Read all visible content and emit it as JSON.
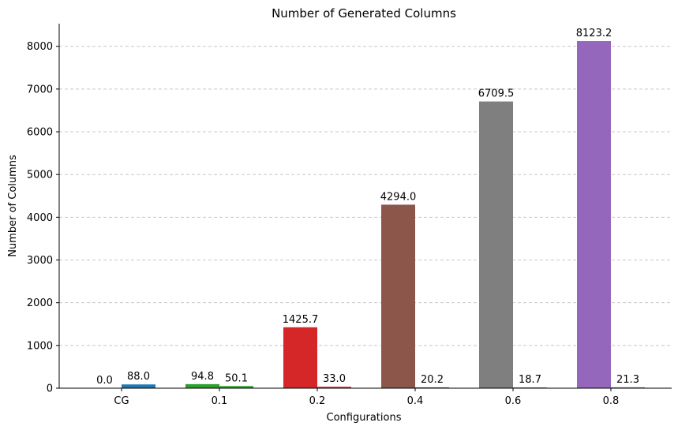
{
  "chart_data": {
    "type": "bar",
    "title": "Number of Generated Columns",
    "xlabel": "Configurations",
    "ylabel": "Number of Columns",
    "categories": [
      "CG",
      "0.1",
      "0.2",
      "0.4",
      "0.6",
      "0.8"
    ],
    "ylim": [
      0,
      8530
    ],
    "yticks": [
      0,
      1000,
      2000,
      3000,
      4000,
      5000,
      6000,
      7000,
      8000
    ],
    "grid": {
      "y": true,
      "style": "dashed",
      "color": "#c8c8c8"
    },
    "series": [
      {
        "values": [
          0.0,
          94.8,
          1425.7,
          4294.0,
          6709.5,
          8123.2
        ],
        "labels": [
          "0.0",
          "94.8",
          "1425.7",
          "4294.0",
          "6709.5",
          "8123.2"
        ],
        "colors": [
          "#1f77b4",
          "#2ca02c",
          "#d62728",
          "#8c564b",
          "#7f7f7f",
          "#9467bd"
        ]
      },
      {
        "values": [
          88.0,
          50.1,
          33.0,
          20.2,
          18.7,
          21.3
        ],
        "labels": [
          "88.0",
          "50.1",
          "33.0",
          "20.2",
          "18.7",
          "21.3"
        ],
        "colors": [
          "#1f77b4",
          "#2ca02c",
          "#d62728",
          "#8c564b",
          "#7f7f7f",
          "#9467bd"
        ]
      }
    ]
  }
}
